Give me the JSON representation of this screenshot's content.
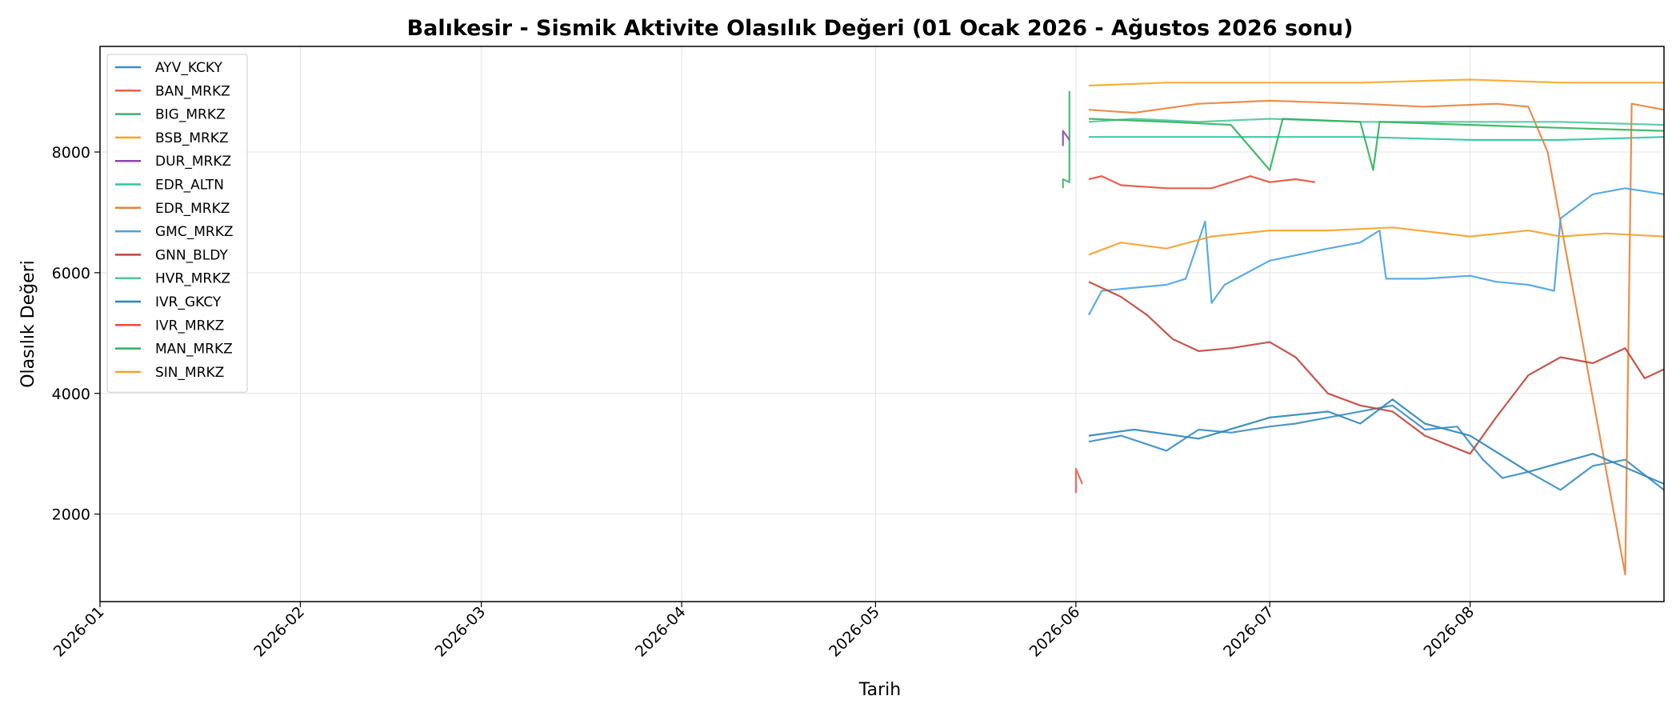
{
  "chart_data": {
    "type": "line",
    "title": "Balıkesir - Sismik Aktivite Olasılık Değeri (01 Ocak 2026 - Ağustos 2026 sonu)",
    "xlabel": "Tarih",
    "ylabel": "Olasılık Değeri",
    "x_type": "date",
    "xlim": [
      "2026-01-01",
      "2026-08-31"
    ],
    "ylim": [
      550,
      9750
    ],
    "x_ticks": [
      "2026-01",
      "2026-02",
      "2026-03",
      "2026-04",
      "2026-05",
      "2026-06",
      "2026-07",
      "2026-08"
    ],
    "y_ticks": [
      2000,
      4000,
      6000,
      8000
    ],
    "grid": true,
    "legend_position": "upper left",
    "series": [
      {
        "name": "AYV_KCKY",
        "color": "#3a8dc4",
        "points": [
          [
            "2026-06-03",
            3200
          ],
          [
            "2026-06-08",
            3300
          ],
          [
            "2026-06-15",
            3050
          ],
          [
            "2026-06-20",
            3400
          ],
          [
            "2026-06-25",
            3350
          ],
          [
            "2026-07-01",
            3450
          ],
          [
            "2026-07-05",
            3500
          ],
          [
            "2026-07-10",
            3600
          ],
          [
            "2026-07-15",
            3700
          ],
          [
            "2026-07-20",
            3800
          ],
          [
            "2026-07-25",
            3400
          ],
          [
            "2026-07-30",
            3450
          ],
          [
            "2026-08-03",
            2900
          ],
          [
            "2026-08-06",
            2600
          ],
          [
            "2026-08-10",
            2700
          ],
          [
            "2026-08-15",
            2400
          ],
          [
            "2026-08-20",
            2800
          ],
          [
            "2026-08-25",
            2900
          ],
          [
            "2026-08-31",
            2400
          ]
        ]
      },
      {
        "name": "BAN_MRKZ",
        "color": "#e8604c",
        "points": [
          [
            "2026-06-01",
            2350
          ],
          [
            "2026-06-01",
            2750
          ],
          [
            "2026-06-02",
            2500
          ]
        ]
      },
      {
        "name": "BIG_MRKZ",
        "color": "#3cb371",
        "points": [
          [
            "2026-05-30",
            7400
          ],
          [
            "2026-05-30",
            7550
          ],
          [
            "2026-05-31",
            7500
          ],
          [
            "2026-05-31",
            9000
          ],
          [
            "2026-05-31",
            8900
          ]
        ]
      },
      {
        "name": "BSB_MRKZ",
        "color": "#f5a623",
        "points": [
          [
            "2026-06-03",
            9100
          ],
          [
            "2026-06-15",
            9150
          ],
          [
            "2026-07-01",
            9150
          ],
          [
            "2026-07-15",
            9150
          ],
          [
            "2026-08-01",
            9200
          ],
          [
            "2026-08-15",
            9150
          ],
          [
            "2026-08-31",
            9150
          ]
        ]
      },
      {
        "name": "DUR_MRKZ",
        "color": "#8e44ad",
        "points": [
          [
            "2026-05-30",
            8100
          ],
          [
            "2026-05-30",
            8350
          ],
          [
            "2026-05-31",
            8200
          ]
        ]
      },
      {
        "name": "EDR_ALTN",
        "color": "#2ec4a0",
        "points": [
          [
            "2026-06-03",
            8250
          ],
          [
            "2026-06-15",
            8250
          ],
          [
            "2026-07-01",
            8250
          ],
          [
            "2026-07-15",
            8250
          ],
          [
            "2026-08-01",
            8200
          ],
          [
            "2026-08-15",
            8200
          ],
          [
            "2026-08-31",
            8250
          ]
        ]
      },
      {
        "name": "EDR_MRKZ",
        "color": "#e8823a",
        "points": [
          [
            "2026-06-03",
            8700
          ],
          [
            "2026-06-10",
            8650
          ],
          [
            "2026-06-20",
            8800
          ],
          [
            "2026-07-01",
            8850
          ],
          [
            "2026-07-15",
            8800
          ],
          [
            "2026-07-25",
            8750
          ],
          [
            "2026-08-05",
            8800
          ],
          [
            "2026-08-10",
            8750
          ],
          [
            "2026-08-13",
            8000
          ],
          [
            "2026-08-25",
            1000
          ],
          [
            "2026-08-26",
            8800
          ],
          [
            "2026-08-31",
            8700
          ]
        ]
      },
      {
        "name": "GMC_MRKZ",
        "color": "#4aa3df",
        "points": [
          [
            "2026-06-03",
            5300
          ],
          [
            "2026-06-05",
            5700
          ],
          [
            "2026-06-15",
            5800
          ],
          [
            "2026-06-18",
            5900
          ],
          [
            "2026-06-21",
            6850
          ],
          [
            "2026-06-22",
            5500
          ],
          [
            "2026-06-24",
            5800
          ],
          [
            "2026-07-01",
            6200
          ],
          [
            "2026-07-10",
            6400
          ],
          [
            "2026-07-15",
            6500
          ],
          [
            "2026-07-18",
            6700
          ],
          [
            "2026-07-19",
            5900
          ],
          [
            "2026-07-25",
            5900
          ],
          [
            "2026-08-01",
            5950
          ],
          [
            "2026-08-05",
            5850
          ],
          [
            "2026-08-10",
            5800
          ],
          [
            "2026-08-14",
            5700
          ],
          [
            "2026-08-15",
            6900
          ],
          [
            "2026-08-20",
            7300
          ],
          [
            "2026-08-25",
            7400
          ],
          [
            "2026-08-31",
            7300
          ]
        ]
      },
      {
        "name": "GNN_BLDY",
        "color": "#c0443a",
        "points": [
          [
            "2026-06-03",
            5850
          ],
          [
            "2026-06-08",
            5600
          ],
          [
            "2026-06-12",
            5300
          ],
          [
            "2026-06-16",
            4900
          ],
          [
            "2026-06-20",
            4700
          ],
          [
            "2026-06-25",
            4750
          ],
          [
            "2026-07-01",
            4850
          ],
          [
            "2026-07-05",
            4600
          ],
          [
            "2026-07-10",
            4000
          ],
          [
            "2026-07-15",
            3800
          ],
          [
            "2026-07-20",
            3700
          ],
          [
            "2026-07-25",
            3300
          ],
          [
            "2026-08-01",
            3000
          ],
          [
            "2026-08-05",
            3600
          ],
          [
            "2026-08-10",
            4300
          ],
          [
            "2026-08-15",
            4600
          ],
          [
            "2026-08-20",
            4500
          ],
          [
            "2026-08-25",
            4750
          ],
          [
            "2026-08-28",
            4250
          ],
          [
            "2026-08-31",
            4400
          ]
        ]
      },
      {
        "name": "HVR_MRKZ",
        "color": "#48c9a0",
        "points": [
          [
            "2026-06-03",
            8500
          ],
          [
            "2026-06-10",
            8550
          ],
          [
            "2026-06-20",
            8500
          ],
          [
            "2026-07-01",
            8550
          ],
          [
            "2026-07-15",
            8500
          ],
          [
            "2026-08-01",
            8500
          ],
          [
            "2026-08-15",
            8500
          ],
          [
            "2026-08-31",
            8450
          ]
        ]
      },
      {
        "name": "IVR_GKCY",
        "color": "#2e86b8",
        "points": [
          [
            "2026-06-03",
            3300
          ],
          [
            "2026-06-10",
            3400
          ],
          [
            "2026-06-20",
            3250
          ],
          [
            "2026-07-01",
            3600
          ],
          [
            "2026-07-10",
            3700
          ],
          [
            "2026-07-15",
            3500
          ],
          [
            "2026-07-20",
            3900
          ],
          [
            "2026-07-25",
            3500
          ],
          [
            "2026-08-01",
            3300
          ],
          [
            "2026-08-10",
            2700
          ],
          [
            "2026-08-20",
            3000
          ],
          [
            "2026-08-31",
            2500
          ]
        ]
      },
      {
        "name": "IVR_MRKZ",
        "color": "#e74c3c",
        "points": [
          [
            "2026-06-03",
            7550
          ],
          [
            "2026-06-05",
            7600
          ],
          [
            "2026-06-08",
            7450
          ],
          [
            "2026-06-15",
            7400
          ],
          [
            "2026-06-22",
            7400
          ],
          [
            "2026-06-28",
            7600
          ],
          [
            "2026-07-01",
            7500
          ],
          [
            "2026-07-05",
            7550
          ],
          [
            "2026-07-08",
            7500
          ]
        ]
      },
      {
        "name": "MAN_MRKZ",
        "color": "#2fb35a",
        "points": [
          [
            "2026-06-03",
            8550
          ],
          [
            "2026-06-15",
            8500
          ],
          [
            "2026-06-25",
            8450
          ],
          [
            "2026-07-01",
            7700
          ],
          [
            "2026-07-03",
            8550
          ],
          [
            "2026-07-15",
            8500
          ],
          [
            "2026-07-17",
            7700
          ],
          [
            "2026-07-18",
            8500
          ],
          [
            "2026-08-01",
            8450
          ],
          [
            "2026-08-15",
            8400
          ],
          [
            "2026-08-31",
            8350
          ]
        ]
      },
      {
        "name": "SIN_MRKZ",
        "color": "#f2a229",
        "points": [
          [
            "2026-06-03",
            6300
          ],
          [
            "2026-06-08",
            6500
          ],
          [
            "2026-06-15",
            6400
          ],
          [
            "2026-06-22",
            6600
          ],
          [
            "2026-07-01",
            6700
          ],
          [
            "2026-07-10",
            6700
          ],
          [
            "2026-07-20",
            6750
          ],
          [
            "2026-08-01",
            6600
          ],
          [
            "2026-08-10",
            6700
          ],
          [
            "2026-08-15",
            6600
          ],
          [
            "2026-08-22",
            6650
          ],
          [
            "2026-08-31",
            6600
          ]
        ]
      }
    ]
  }
}
